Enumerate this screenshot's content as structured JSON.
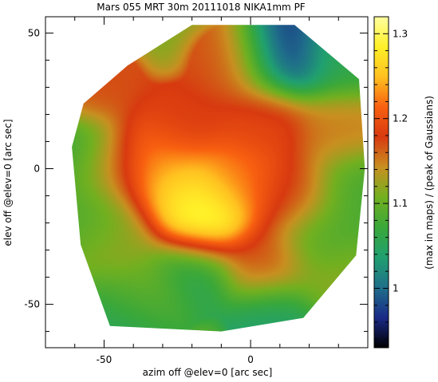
{
  "chart_data": {
    "type": "heatmap",
    "title": "Mars   055 MRT 30m   20111018 NIKA1mm PF",
    "xlabel": "azim off @elev=0 [arc sec]",
    "ylabel": "elev off @elev=0 [arc sec]",
    "colorbar_label": "(max in maps) / (peak of Gaussians)",
    "xlim": [
      -70,
      40
    ],
    "ylim": [
      -66,
      56
    ],
    "x_ticks": [
      -50,
      0
    ],
    "y_ticks": [
      -50,
      0,
      50
    ],
    "colorbar_range": [
      0.93,
      1.32
    ],
    "colorbar_ticks": [
      1.0,
      1.1,
      1.2,
      1.3
    ],
    "colormap": [
      "#000000",
      "#1a2a88",
      "#1f6f8a",
      "#20a070",
      "#3aa83a",
      "#72b020",
      "#c89020",
      "#d83a10",
      "#f86010",
      "#ffc020",
      "#fff028",
      "#ffffa0"
    ],
    "map_outline_polygon": [
      [
        -42,
        38
      ],
      [
        -20,
        53
      ],
      [
        15,
        53
      ],
      [
        37,
        33
      ],
      [
        39,
        0
      ],
      [
        36,
        -32
      ],
      [
        18,
        -55
      ],
      [
        -10,
        -60
      ],
      [
        -48,
        -58
      ],
      [
        -58,
        -28
      ],
      [
        -61,
        8
      ],
      [
        -57,
        24
      ]
    ],
    "features": [
      {
        "x": -16,
        "y": -18,
        "value": 1.32
      },
      {
        "x": -25,
        "y": -8,
        "value": 1.27
      },
      {
        "x": -35,
        "y": 2,
        "value": 1.24
      },
      {
        "x": -5,
        "y": -5,
        "value": 1.22
      },
      {
        "x": 5,
        "y": 18,
        "value": 1.19
      },
      {
        "x": 15,
        "y": -10,
        "value": 1.18
      },
      {
        "x": 5,
        "y": -35,
        "value": 1.17
      },
      {
        "x": -25,
        "y": 15,
        "value": 1.18
      },
      {
        "x": -5,
        "y": 38,
        "value": 1.17
      },
      {
        "x": -48,
        "y": 0,
        "value": 1.16
      },
      {
        "x": 30,
        "y": 15,
        "value": 1.15
      },
      {
        "x": -52,
        "y": 30,
        "value": 1.17
      },
      {
        "x": -38,
        "y": -48,
        "value": 1.16
      },
      {
        "x": 30,
        "y": -40,
        "value": 1.12
      },
      {
        "x": -45,
        "y": -25,
        "value": 1.12
      },
      {
        "x": 11,
        "y": 41,
        "value": 0.96
      },
      {
        "x": -40,
        "y": -52,
        "value": 1.0
      },
      {
        "x": -20,
        "y": -38,
        "value": 1.05
      },
      {
        "x": -58,
        "y": 5,
        "value": 1.06
      },
      {
        "x": -55,
        "y": -15,
        "value": 1.08
      },
      {
        "x": 8,
        "y": -55,
        "value": 1.04
      },
      {
        "x": 25,
        "y": -25,
        "value": 1.08
      },
      {
        "x": 30,
        "y": 40,
        "value": 1.06
      },
      {
        "x": 35,
        "y": -8,
        "value": 1.08
      }
    ],
    "background_value": 1.11
  }
}
